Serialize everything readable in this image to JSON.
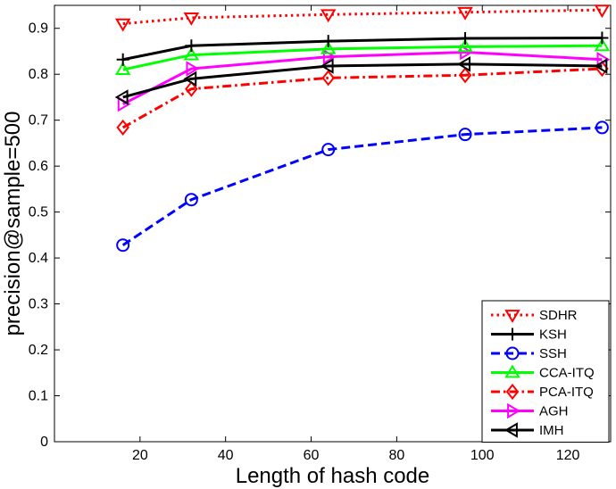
{
  "chart_data": {
    "type": "line",
    "xlabel": "Length of hash code",
    "ylabel": "precision@sample=500",
    "xlim": [
      0,
      130
    ],
    "ylim": [
      0,
      0.95
    ],
    "xticks": [
      20,
      40,
      60,
      80,
      100,
      120
    ],
    "yticks": [
      0,
      0.1,
      0.2,
      0.3,
      0.4,
      0.5,
      0.6,
      0.7,
      0.8,
      0.9
    ],
    "ytick_labels": [
      "0",
      "0.1",
      "0.2",
      "0.3",
      "0.4",
      "0.5",
      "0.6",
      "0.7",
      "0.8",
      "0.9"
    ],
    "legend_position": "bottom-right",
    "x": [
      16,
      32,
      64,
      96,
      128
    ],
    "series": [
      {
        "name": "SDHR",
        "values": [
          0.91,
          0.923,
          0.93,
          0.935,
          0.94
        ],
        "color": "#ff0000",
        "dash": "dot",
        "marker": "triangle-down"
      },
      {
        "name": "KSH",
        "values": [
          0.832,
          0.862,
          0.872,
          0.878,
          0.879
        ],
        "color": "#000000",
        "dash": "solid",
        "marker": "plus"
      },
      {
        "name": "SSH",
        "values": [
          0.428,
          0.527,
          0.636,
          0.669,
          0.684
        ],
        "color": "#0000ff",
        "dash": "dash",
        "marker": "circle"
      },
      {
        "name": "CCA-ITQ",
        "values": [
          0.81,
          0.842,
          0.855,
          0.86,
          0.862
        ],
        "color": "#00ff00",
        "dash": "solid",
        "marker": "triangle-up"
      },
      {
        "name": "PCA-ITQ",
        "values": [
          0.684,
          0.768,
          0.792,
          0.798,
          0.812
        ],
        "color": "#ff0000",
        "dash": "dashdot",
        "marker": "diamond"
      },
      {
        "name": "AGH",
        "values": [
          0.735,
          0.812,
          0.838,
          0.848,
          0.832
        ],
        "color": "#ff00ff",
        "dash": "solid",
        "marker": "triangle-right"
      },
      {
        "name": "IMH",
        "values": [
          0.75,
          0.79,
          0.818,
          0.822,
          0.818
        ],
        "color": "#000000",
        "dash": "solid",
        "marker": "triangle-left"
      }
    ]
  }
}
